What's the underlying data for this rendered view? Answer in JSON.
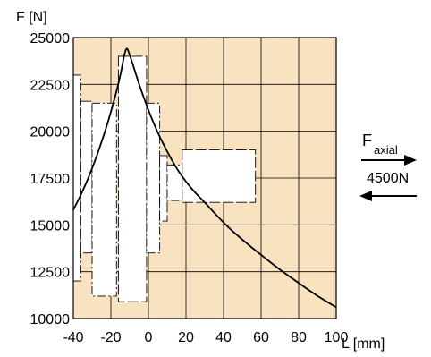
{
  "chart_data": {
    "type": "line",
    "title": "",
    "ylabel": "F [N]",
    "xlabel": "L [mm]",
    "xlim": [
      -40,
      100
    ],
    "ylim": [
      10000,
      25000
    ],
    "x_ticks": [
      -40,
      -20,
      0,
      20,
      40,
      60,
      80,
      100
    ],
    "y_ticks": [
      10000,
      12500,
      15000,
      17500,
      20000,
      22500,
      25000
    ],
    "x_tick_labels": [
      "-40",
      "-20",
      "0",
      "20",
      "40",
      "60",
      "80",
      "100"
    ],
    "y_tick_labels": [
      "10000",
      "12500",
      "15000",
      "17500",
      "20000",
      "22500",
      "25000"
    ],
    "grid": true,
    "background_color": "#f8e2c0",
    "grid_color": "#000000",
    "curve_color": "#000000",
    "series": [
      {
        "x": [
          -40,
          -35,
          -30,
          -25,
          -20,
          -15,
          -12,
          -10,
          -5,
          0,
          5,
          10,
          15,
          20,
          25,
          30,
          40,
          50,
          60,
          70,
          80,
          90,
          100
        ],
        "values": [
          15800,
          16800,
          18000,
          19400,
          21000,
          22900,
          24600,
          24100,
          22500,
          21100,
          19900,
          18900,
          18000,
          17300,
          16700,
          16200,
          15100,
          14200,
          13400,
          12600,
          11900,
          11200,
          10600
        ]
      }
    ],
    "component_outline_x": [
      -40,
      -36,
      -36,
      -32,
      -32,
      -30,
      -30,
      -18,
      -18,
      -16,
      -16,
      -17,
      -17,
      -12,
      -12,
      -8,
      -8,
      -2,
      -2,
      2,
      2,
      5,
      5,
      8,
      8,
      10,
      10,
      12,
      12,
      18,
      18,
      22,
      22,
      28,
      28,
      34,
      34,
      48,
      48,
      55,
      55,
      57,
      57,
      55,
      55,
      48,
      48,
      34,
      34,
      28,
      28,
      22,
      22,
      18,
      18,
      12,
      12,
      10,
      10,
      8,
      8,
      5,
      5,
      2,
      2,
      -2,
      -2,
      -8,
      -8,
      -12,
      -12,
      -17,
      -17,
      -16,
      -16,
      -18,
      -18,
      -30,
      -30,
      -32,
      -32,
      -36,
      -36,
      -40
    ],
    "component_outline_y": [
      23000,
      23000,
      22000,
      22000,
      21500,
      21500,
      21500,
      21500,
      24000,
      24000,
      24000,
      24000,
      24000,
      24000,
      24000,
      24000,
      24000,
      24000,
      21500,
      21500,
      21000,
      21000,
      18800,
      18800,
      18400,
      18400,
      18000,
      18000,
      18800,
      18800,
      19000,
      19000,
      18800,
      18800,
      18800,
      18800,
      18800,
      18800,
      18800,
      18800,
      18800,
      18800,
      16200,
      16200,
      16200,
      16200,
      16200,
      16200,
      16200,
      16200,
      16200,
      16200,
      16200,
      16200,
      16200,
      16200,
      16500,
      16500,
      16000,
      16000,
      15500,
      15500,
      13500,
      13500,
      12000,
      12000,
      11000,
      11000,
      11000,
      11000,
      11000,
      11000,
      11000,
      11000,
      11000,
      11000,
      12000,
      12000,
      13500,
      13500,
      13000,
      13000,
      12000,
      12000
    ],
    "annotation": {
      "symbol": "F",
      "subscript": "axial",
      "value": "4500N"
    }
  }
}
